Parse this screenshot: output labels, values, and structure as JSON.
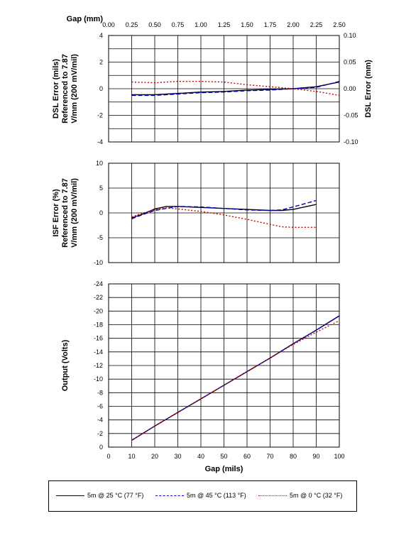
{
  "chart_data": [
    {
      "type": "line",
      "ylabel": "DSL Error (mils) Referenced to 7.87 V/mm (200 mV/mil)",
      "ylabel_right": "DSL Error (mm)",
      "xlabel_top": "Gap (mm)",
      "ylim": [
        -4,
        4
      ],
      "ylim_right": [
        -0.1,
        0.1
      ],
      "yticks": [
        "4",
        "2",
        "0",
        "-2",
        "-4"
      ],
      "yticks_right": [
        "0.10",
        "0.05",
        "0.00",
        "-0.05",
        "-0.10"
      ],
      "xticks_top": [
        "0.00",
        "0.25",
        "0.50",
        "0.75",
        "1.00",
        "1.25",
        "1.50",
        "1.75",
        "2.00",
        "2.25",
        "2.50"
      ],
      "series": [
        {
          "name": "5m @ 25 °C (77 °F)",
          "x": [
            10,
            20,
            30,
            40,
            50,
            60,
            70,
            80,
            90,
            100
          ],
          "y": [
            -0.45,
            -0.45,
            -0.35,
            -0.25,
            -0.2,
            -0.1,
            -0.05,
            0,
            0.15,
            0.5
          ]
        },
        {
          "name": "5m @ 45 °C (113 °F)",
          "x": [
            10,
            20,
            30,
            40,
            50,
            60,
            70,
            80,
            90,
            100
          ],
          "y": [
            -0.5,
            -0.5,
            -0.4,
            -0.3,
            -0.25,
            -0.15,
            -0.1,
            0,
            0.1,
            0.55
          ]
        },
        {
          "name": "5m @ 0 °C (32 °F)",
          "x": [
            10,
            20,
            30,
            40,
            50,
            60,
            70,
            80,
            90,
            100
          ],
          "y": [
            0.5,
            0.45,
            0.55,
            0.55,
            0.5,
            0.3,
            0.15,
            0,
            -0.2,
            -0.5
          ]
        }
      ]
    },
    {
      "type": "line",
      "ylabel": "ISF Error (%) Referenced to 7.87 V/mm (200 mV/mil)",
      "ylim": [
        -10,
        10
      ],
      "yticks": [
        "10",
        "5",
        "0",
        "-5",
        "-10"
      ],
      "series": [
        {
          "name": "5m @ 25 °C (77 °F)",
          "x": [
            10,
            15,
            20,
            25,
            30,
            40,
            50,
            60,
            70,
            75,
            80,
            90
          ],
          "y": [
            -1,
            -0.2,
            0.8,
            1.3,
            1.3,
            1.1,
            0.9,
            0.7,
            0.5,
            0.5,
            0.7,
            1.7
          ]
        },
        {
          "name": "5m @ 45 °C (113 °F)",
          "x": [
            10,
            15,
            20,
            25,
            30,
            40,
            50,
            60,
            70,
            75,
            80,
            90
          ],
          "y": [
            -1.2,
            -0.3,
            0.5,
            0.9,
            1.3,
            1.2,
            0.9,
            0.6,
            0.5,
            0.6,
            1.2,
            2.5
          ]
        },
        {
          "name": "5m @ 0 °C (32 °F)",
          "x": [
            10,
            15,
            20,
            25,
            30,
            40,
            50,
            60,
            70,
            75,
            80,
            90
          ],
          "y": [
            -0.8,
            0,
            0.6,
            1,
            0.8,
            0.3,
            -0.4,
            -1.3,
            -2.3,
            -2.8,
            -2.9,
            -2.9
          ]
        }
      ]
    },
    {
      "type": "line",
      "ylabel": "Output (Volts)",
      "xlabel": "Gap (mils)",
      "xlim": [
        0,
        100
      ],
      "ylim": [
        0,
        -24
      ],
      "xticks": [
        "0",
        "10",
        "20",
        "30",
        "40",
        "50",
        "60",
        "70",
        "80",
        "90",
        "100"
      ],
      "yticks": [
        "-24",
        "-22",
        "-20",
        "-18",
        "-16",
        "-14",
        "-12",
        "-10",
        "-8",
        "-6",
        "-4",
        "-2",
        "0"
      ],
      "series": [
        {
          "name": "5m @ 25 °C (77 °F)",
          "x": [
            10,
            20,
            30,
            40,
            50,
            60,
            70,
            80,
            90,
            100
          ],
          "y": [
            -1,
            -3.1,
            -5.1,
            -7.1,
            -9.1,
            -11.1,
            -13.1,
            -15.2,
            -17.2,
            -19.3
          ]
        },
        {
          "name": "5m @ 45 °C (113 °F)",
          "x": [
            10,
            20,
            30,
            40,
            50,
            60,
            70,
            80,
            90,
            100
          ],
          "y": [
            -1,
            -3.1,
            -5.1,
            -7.1,
            -9.1,
            -11.1,
            -13.1,
            -15.2,
            -17.2,
            -19.3
          ]
        },
        {
          "name": "5m @ 0 °C (32 °F)",
          "x": [
            10,
            20,
            30,
            40,
            50,
            60,
            70,
            80,
            90,
            100
          ],
          "y": [
            -1,
            -3.1,
            -5.1,
            -7.1,
            -9.1,
            -11.1,
            -13.1,
            -15.1,
            -16.9,
            -18.6
          ]
        }
      ]
    }
  ],
  "legend": [
    {
      "label": "5m @ 25 °C (77 °F)",
      "color": "#000000",
      "style": "solid"
    },
    {
      "label": "5m @ 45 °C (113 °F)",
      "color": "#0000cc",
      "style": "dashed"
    },
    {
      "label": "5m @ 0 °C (32 °F)",
      "color": "#cc0000",
      "style": "dotted"
    }
  ],
  "grid": true,
  "legend_position": "bottom"
}
